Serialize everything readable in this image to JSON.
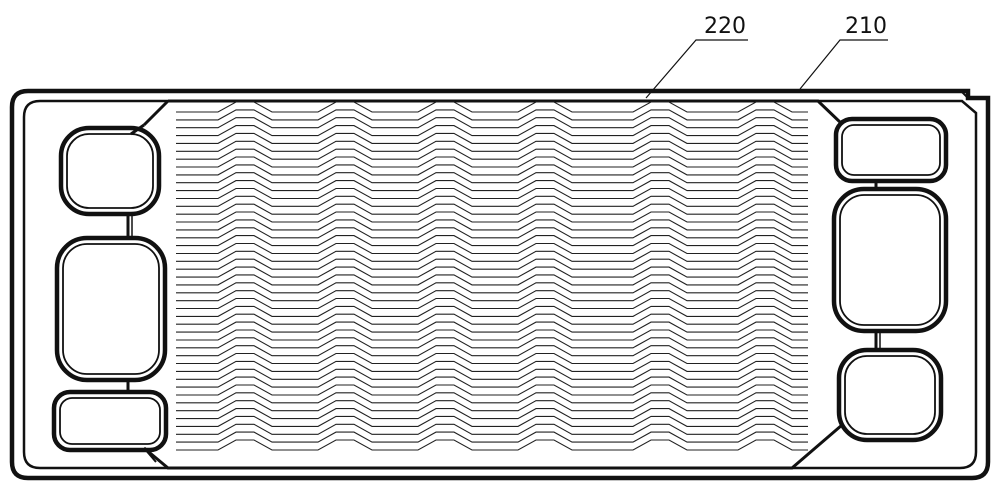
{
  "labels": {
    "ref_220": "220",
    "ref_210": "210"
  },
  "colors": {
    "line": "#111111",
    "background": "#ffffff"
  }
}
